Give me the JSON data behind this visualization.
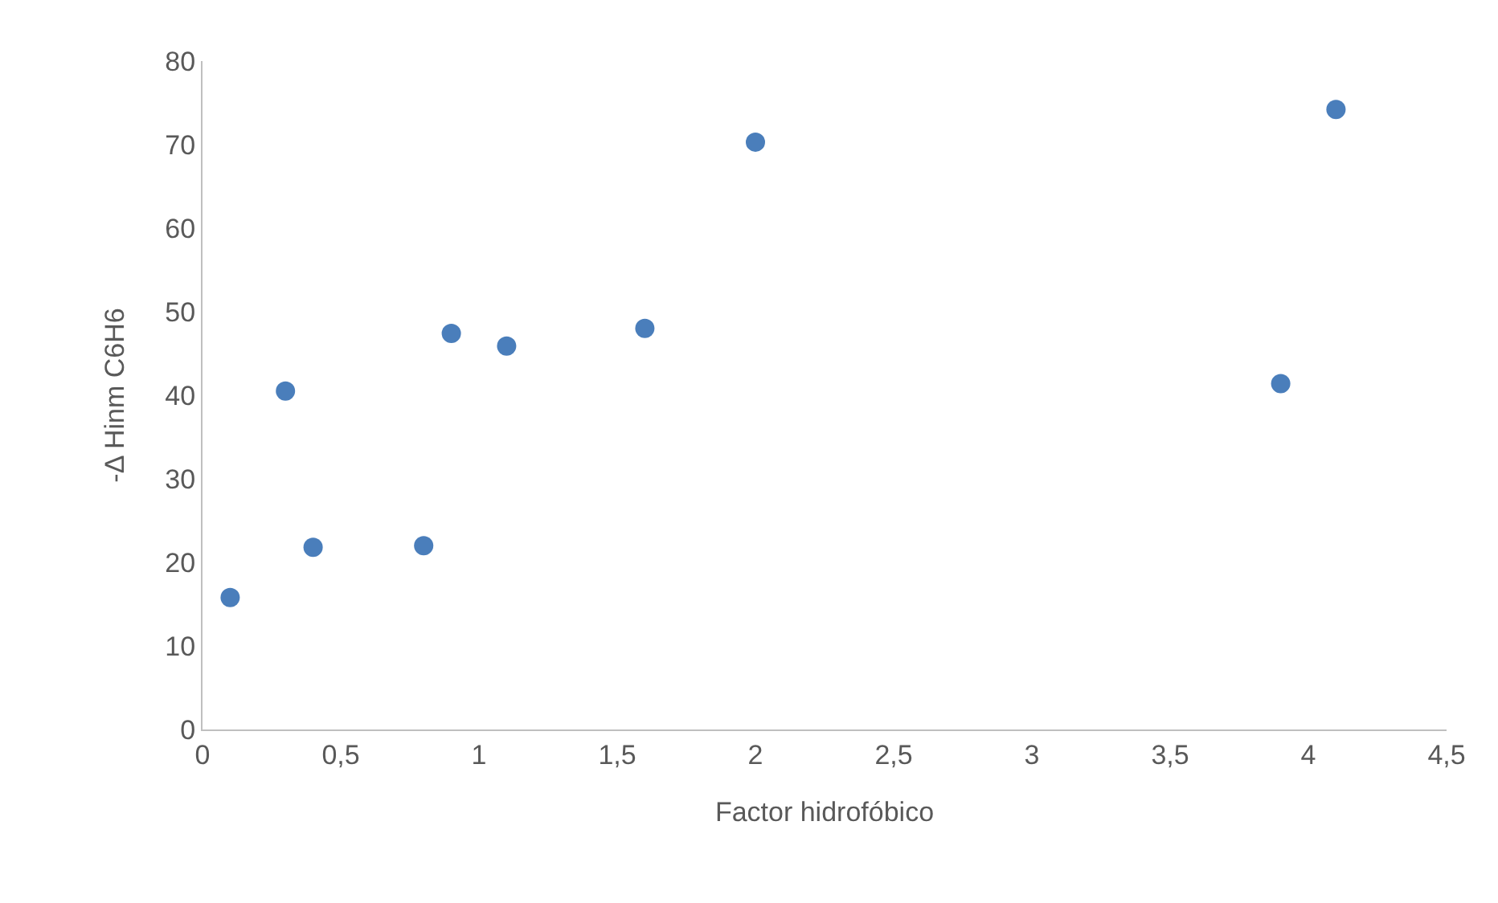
{
  "chart_data": {
    "type": "scatter",
    "xlabel": "Factor hidrofóbico",
    "ylabel": "-Δ Hinm C6H6",
    "x": [
      0.1,
      0.3,
      0.4,
      0.8,
      0.9,
      1.1,
      1.6,
      2.0,
      3.9,
      4.1
    ],
    "series": [
      {
        "color": "#4a7ebb",
        "values": [
          15.8,
          40.5,
          21.8,
          22.0,
          47.4,
          45.9,
          48.0,
          70.3,
          41.4,
          74.2
        ]
      }
    ],
    "xlim": [
      0,
      4.5
    ],
    "xticks": [
      0,
      {
        "value": 0.5,
        "label": "0,5"
      },
      1,
      {
        "value": 1.5,
        "label": "1,5"
      },
      2,
      {
        "value": 2.5,
        "label": "2,5"
      },
      3,
      {
        "value": 3.5,
        "label": "3,5"
      },
      4,
      {
        "value": 4.5,
        "label": "4,5"
      }
    ],
    "ylim": [
      0,
      80
    ],
    "yticks": [
      0,
      10,
      20,
      30,
      40,
      50,
      60,
      70,
      80
    ],
    "grid": false,
    "marker": "circle"
  }
}
